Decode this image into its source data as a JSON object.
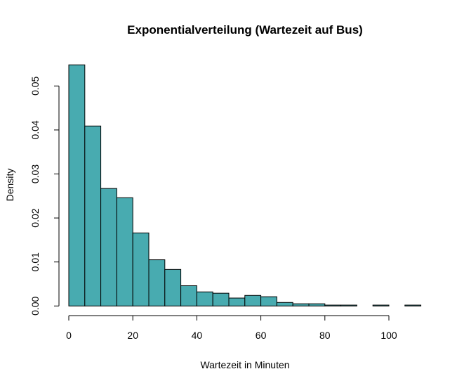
{
  "chart_data": {
    "type": "bar",
    "subtype": "histogram",
    "title": "Exponentialverteilung (Wartezeit auf Bus)",
    "xlabel": "Wartezeit in Minuten",
    "ylabel": "Density",
    "xlim": [
      0,
      110
    ],
    "ylim": [
      0,
      0.055
    ],
    "x_ticks": [
      0,
      20,
      40,
      60,
      80,
      100
    ],
    "x_tick_labels": [
      "0",
      "20",
      "40",
      "60",
      "80",
      "100"
    ],
    "y_ticks": [
      0,
      0.01,
      0.02,
      0.03,
      0.04,
      0.05
    ],
    "y_tick_labels": [
      "0.00",
      "0.01",
      "0.02",
      "0.03",
      "0.04",
      "0.05"
    ],
    "grid": false,
    "bar_color": "#48abb0",
    "bin_edges": [
      0,
      5,
      10,
      15,
      20,
      25,
      30,
      35,
      40,
      45,
      50,
      55,
      60,
      65,
      70,
      75,
      80,
      85,
      90,
      95,
      100,
      105,
      110
    ],
    "values": [
      0.0548,
      0.0409,
      0.0267,
      0.0246,
      0.0166,
      0.0105,
      0.0083,
      0.0046,
      0.0032,
      0.0029,
      0.0018,
      0.0024,
      0.0021,
      0.0008,
      0.0005,
      0.0005,
      0.0002,
      0.0002,
      0.0,
      0.0002,
      0.0,
      0.0002
    ]
  }
}
